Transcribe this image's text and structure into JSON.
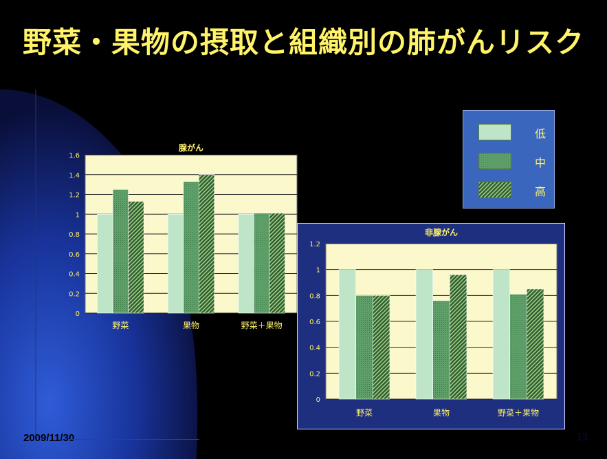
{
  "slide": {
    "title": "野菜・果物の摂取と組織別の肺がんリスク",
    "subtitle": "",
    "date": "2009/11/30",
    "page_number": "13"
  },
  "colors": {
    "title": "#fff36a",
    "plot_bg": "#fbf8cc",
    "low": "#bfe5c8",
    "mid": "#5fa06a",
    "high": "#2f5f30",
    "legend_bg": "#3b66bd"
  },
  "legend": [
    {
      "label": "低",
      "pattern": "low"
    },
    {
      "label": "中",
      "pattern": "mid"
    },
    {
      "label": "高",
      "pattern": "high"
    }
  ],
  "chart_data": [
    {
      "type": "bar",
      "title": "腺がん",
      "categories": [
        "野菜",
        "果物",
        "野菜＋果物"
      ],
      "series": [
        {
          "name": "低",
          "values": [
            1.0,
            1.0,
            1.0
          ]
        },
        {
          "name": "中",
          "values": [
            1.25,
            1.33,
            1.01
          ]
        },
        {
          "name": "高",
          "values": [
            1.13,
            1.4,
            1.01
          ]
        }
      ],
      "ylim": [
        0,
        1.6
      ],
      "yticks": [
        "0",
        "0.2",
        "0.4",
        "0.6",
        "0.8",
        "1",
        "1.2",
        "1.4",
        "1.6"
      ],
      "grid": true
    },
    {
      "type": "bar",
      "title": "非腺がん",
      "categories": [
        "野菜",
        "果物",
        "野菜＋果物"
      ],
      "series": [
        {
          "name": "低",
          "values": [
            1.0,
            1.0,
            1.0
          ]
        },
        {
          "name": "中",
          "values": [
            0.8,
            0.76,
            0.81
          ]
        },
        {
          "name": "高",
          "values": [
            0.8,
            0.96,
            0.85
          ]
        }
      ],
      "ylim": [
        0,
        1.2
      ],
      "yticks": [
        "0",
        "0.2",
        "0.4",
        "0.6",
        "0.8",
        "1",
        "1.2"
      ],
      "grid": true
    }
  ]
}
